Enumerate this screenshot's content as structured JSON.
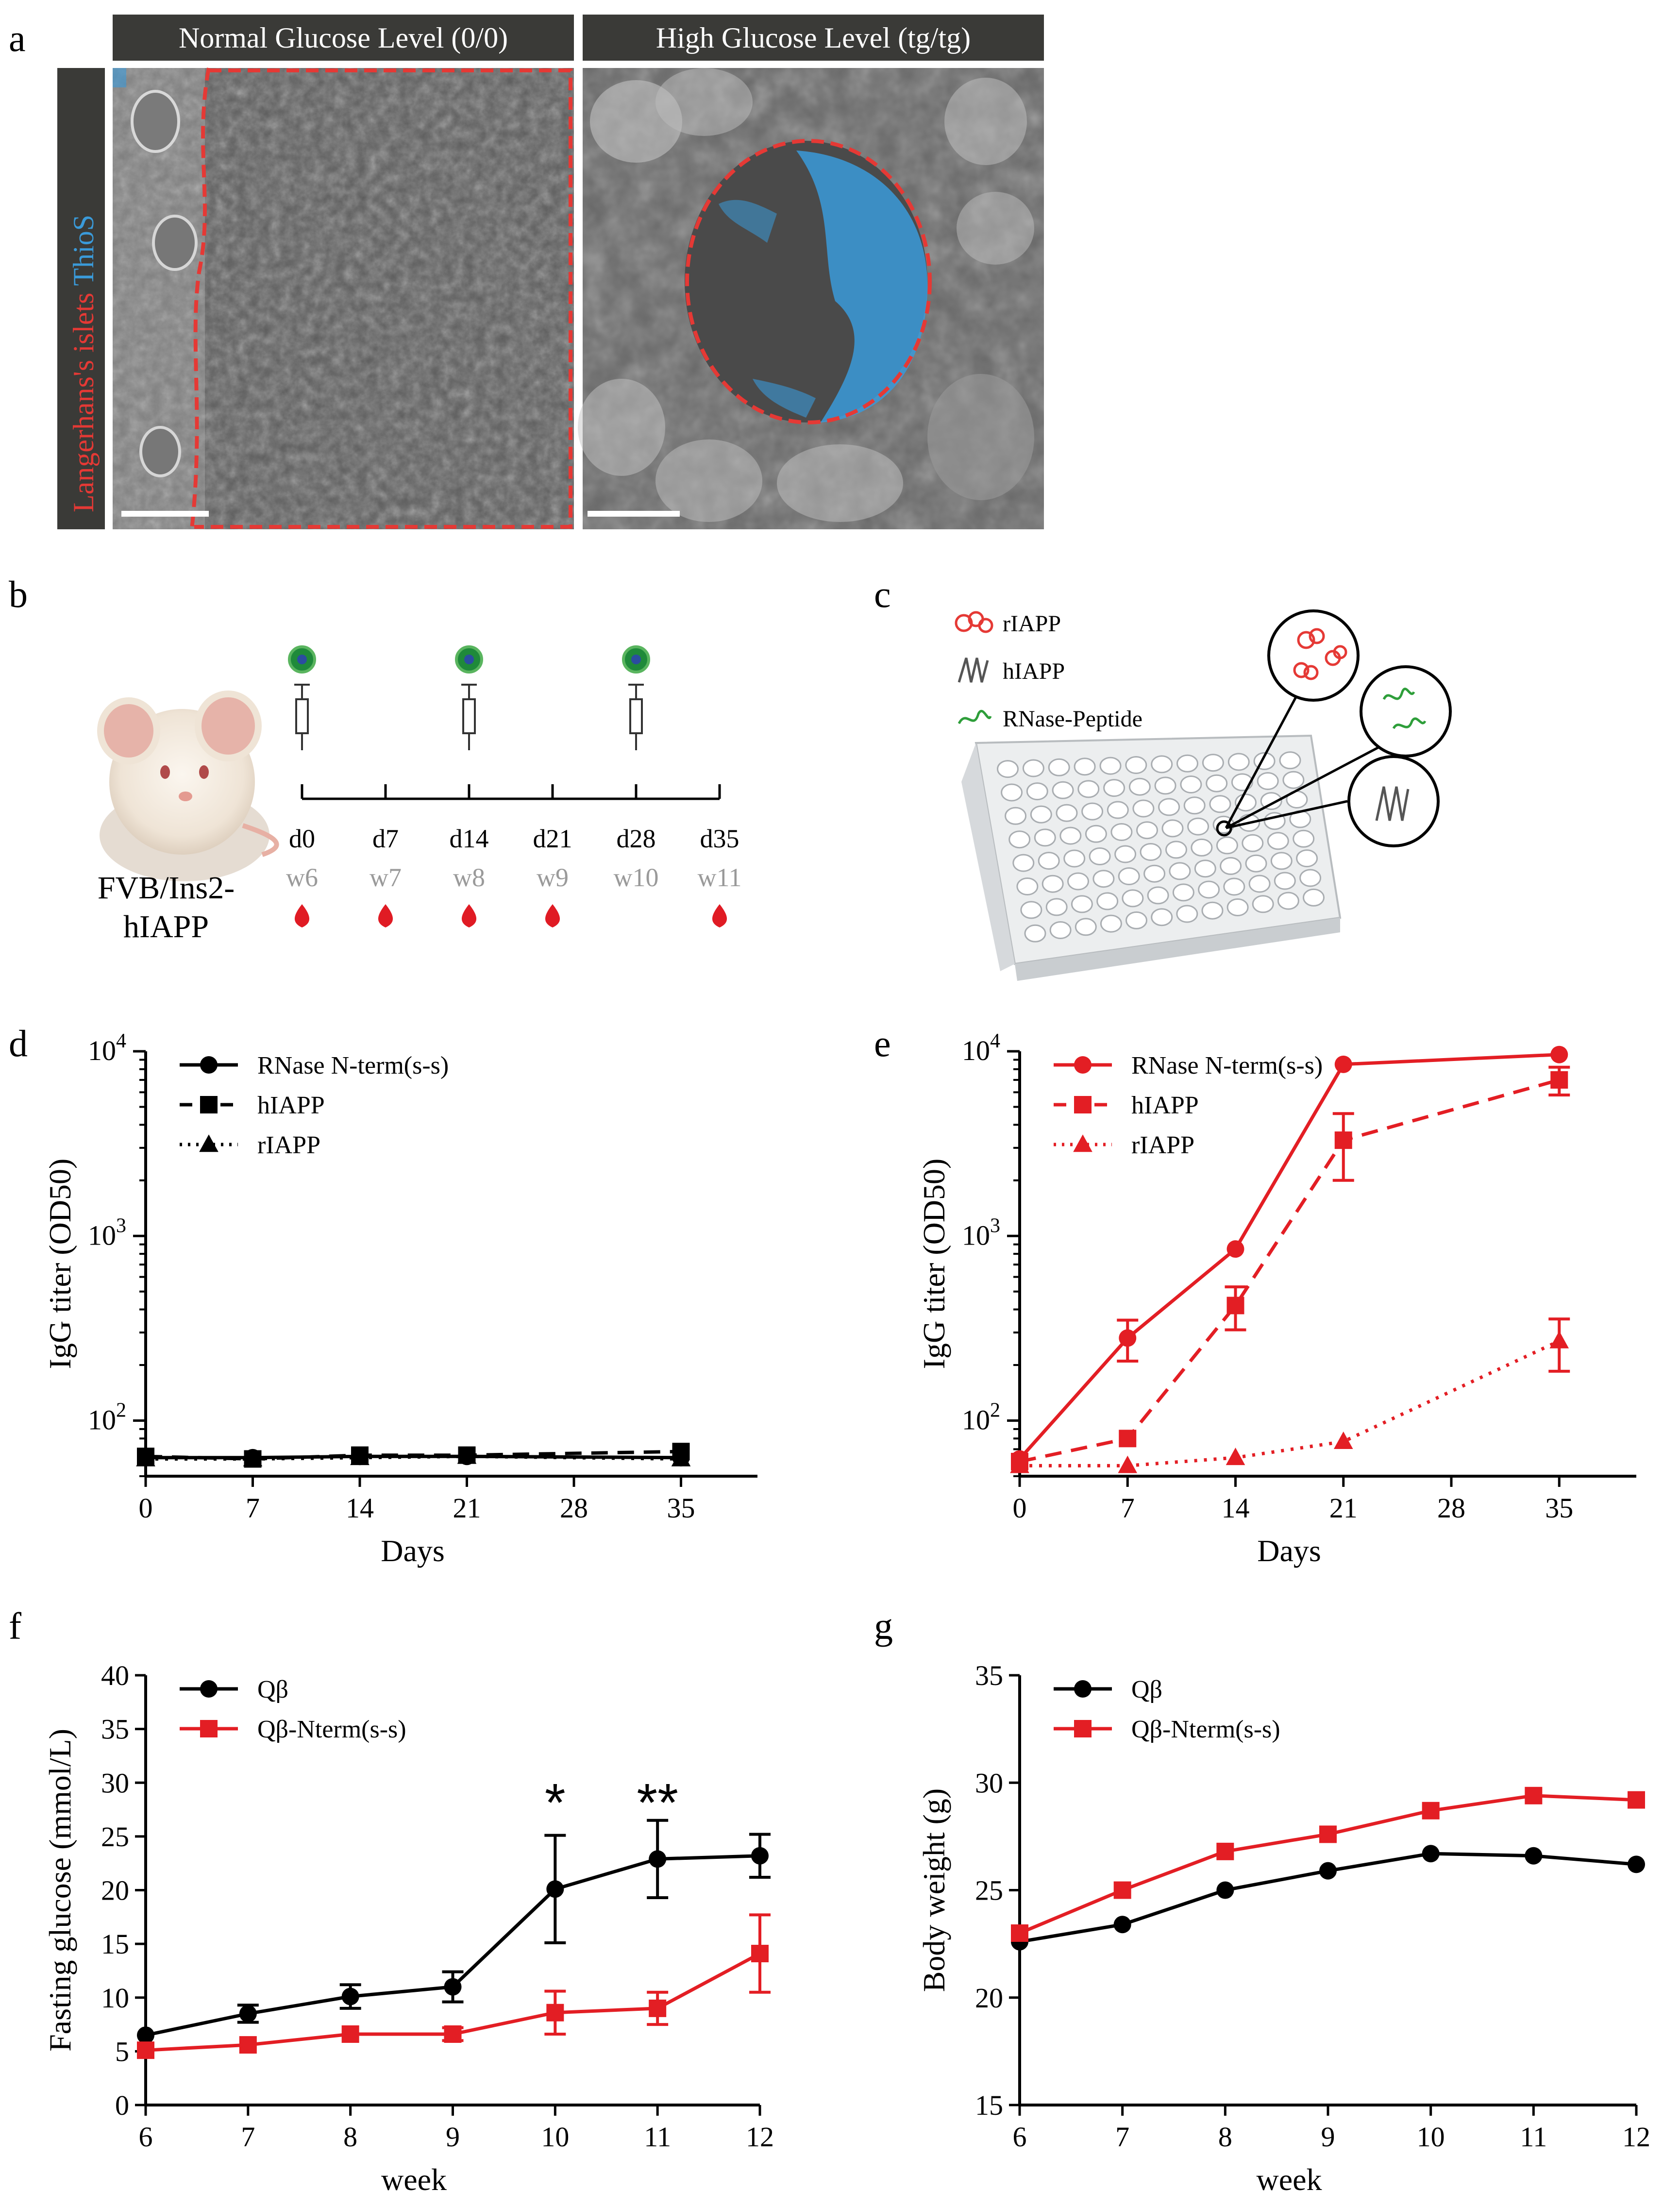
{
  "panel_letters": [
    "a",
    "b",
    "c",
    "d",
    "e",
    "f",
    "g"
  ],
  "panel_a": {
    "header_left": "Normal Glucose Level (0/0)",
    "header_right": "High Glucose Level (tg/tg)",
    "side_label_red": "Langerhans's islets",
    "side_label_blue": "ThioS",
    "colors": {
      "outline": "#e53935",
      "stain": "#3a9ad9",
      "header_bg": "#3a3a37"
    }
  },
  "panel_b": {
    "mouse_label_line1": "FVB/Ins2-",
    "mouse_label_line2": "hIAPP",
    "days": [
      "d0",
      "d7",
      "d14",
      "d21",
      "d28",
      "d35"
    ],
    "weeks": [
      "w6",
      "w7",
      "w8",
      "w9",
      "w10",
      "w11"
    ],
    "injection_days": [
      "d0",
      "d14",
      "d28"
    ],
    "blood_draw_days": [
      "d0",
      "d7",
      "d14",
      "d21",
      "d35"
    ],
    "icons": [
      "vaccine-particle-icon",
      "syringe-icon",
      "blood-drop-icon",
      "mouse-illustration"
    ]
  },
  "panel_c": {
    "legend": [
      "rIAPP",
      "hIAPP",
      "RNase-Peptide"
    ],
    "colors": {
      "rIAPP": "#e53935",
      "hIAPP": "#555555",
      "RNase-Peptide": "#2e9e3a"
    },
    "icons": [
      "elisa-plate-icon",
      "zoom-circle-icon"
    ]
  },
  "chart_data": [
    {
      "panel": "d",
      "type": "line",
      "ylabel": "IgG titer (OD50)",
      "xlabel": "Days",
      "yscale": "log",
      "ylim": [
        50,
        10000
      ],
      "xlim": [
        0,
        40
      ],
      "xticks": [
        0,
        7,
        14,
        21,
        28,
        35
      ],
      "yticks": [
        "10 2",
        "10 3",
        "10 4"
      ],
      "legend": "top-left",
      "series": [
        {
          "name": "RNase N-term(s-s)",
          "style": "solid",
          "marker": "circle",
          "color": "#000000",
          "x": [
            0,
            7,
            14,
            21,
            35
          ],
          "y": [
            63,
            63,
            64,
            64,
            63
          ]
        },
        {
          "name": "hIAPP",
          "style": "dashed",
          "marker": "square",
          "color": "#000000",
          "x": [
            0,
            7,
            14,
            21,
            35
          ],
          "y": [
            64,
            62,
            65,
            65,
            68
          ]
        },
        {
          "name": "rIAPP",
          "style": "dotted",
          "marker": "triangle",
          "color": "#000000",
          "x": [
            0,
            7,
            14,
            21,
            35
          ],
          "y": [
            62,
            62,
            63,
            64,
            62
          ]
        }
      ]
    },
    {
      "panel": "e",
      "type": "line",
      "ylabel": "IgG titer (OD50)",
      "xlabel": "Days",
      "yscale": "log",
      "ylim": [
        50,
        10000
      ],
      "xlim": [
        0,
        40
      ],
      "xticks": [
        0,
        7,
        14,
        21,
        28,
        35
      ],
      "yticks": [
        "10 2",
        "10 3",
        "10 4"
      ],
      "legend": "top-left",
      "series": [
        {
          "name": "RNase N-term(s-s)",
          "style": "solid",
          "marker": "circle",
          "color": "#e31e24",
          "x": [
            0,
            7,
            14,
            21,
            35
          ],
          "y": [
            62,
            280,
            850,
            8500,
            9600
          ],
          "err": [
            0,
            70,
            0,
            0,
            0
          ]
        },
        {
          "name": "hIAPP",
          "style": "dashed",
          "marker": "square",
          "color": "#e31e24",
          "x": [
            0,
            7,
            14,
            21,
            35
          ],
          "y": [
            60,
            80,
            420,
            3300,
            7000
          ],
          "err": [
            0,
            0,
            110,
            1300,
            1200
          ]
        },
        {
          "name": "rIAPP",
          "style": "dotted",
          "marker": "triangle",
          "color": "#e31e24",
          "x": [
            0,
            7,
            14,
            21,
            35
          ],
          "y": [
            57,
            57,
            63,
            77,
            270
          ],
          "err": [
            0,
            0,
            0,
            0,
            85
          ]
        }
      ]
    },
    {
      "panel": "f",
      "type": "line",
      "ylabel": "Fasting glucose (mmol/L)",
      "xlabel": "week",
      "ylim": [
        0,
        40
      ],
      "xlim": [
        6,
        12
      ],
      "xticks": [
        6,
        7,
        8,
        9,
        10,
        11,
        12
      ],
      "yticks": [
        0,
        5,
        10,
        15,
        20,
        25,
        30,
        35,
        40
      ],
      "legend": "top-left",
      "annotations": [
        {
          "text": "*",
          "x": 10
        },
        {
          "text": "**",
          "x": 11
        }
      ],
      "series": [
        {
          "name": "Qβ",
          "marker": "circle",
          "color": "#000000",
          "x": [
            6,
            7,
            8,
            9,
            10,
            11,
            12
          ],
          "y": [
            6.5,
            8.5,
            10.1,
            11,
            20.1,
            22.9,
            23.2
          ],
          "err": [
            0,
            0.8,
            1.1,
            1.4,
            5,
            3.6,
            2
          ]
        },
        {
          "name": "Qβ-Nterm(s-s)",
          "marker": "square",
          "color": "#e31e24",
          "x": [
            6,
            7,
            8,
            9,
            10,
            11,
            12
          ],
          "y": [
            5.1,
            5.6,
            6.6,
            6.6,
            8.6,
            9,
            14.1
          ],
          "err": [
            0,
            0,
            0,
            0.6,
            2,
            1.5,
            3.6
          ]
        }
      ]
    },
    {
      "panel": "g",
      "type": "line",
      "ylabel": "Body weight (g)",
      "xlabel": "week",
      "ylim": [
        15,
        35
      ],
      "xlim": [
        6,
        12
      ],
      "xticks": [
        6,
        7,
        8,
        9,
        10,
        11,
        12
      ],
      "yticks": [
        15,
        20,
        25,
        30,
        35
      ],
      "legend": "top-left",
      "series": [
        {
          "name": "Qβ",
          "marker": "circle",
          "color": "#000000",
          "x": [
            6,
            7,
            8,
            9,
            10,
            11,
            12
          ],
          "y": [
            22.6,
            23.4,
            25,
            25.9,
            26.7,
            26.6,
            26.2
          ]
        },
        {
          "name": "Qβ-Nterm(s-s)",
          "marker": "square",
          "color": "#e31e24",
          "x": [
            6,
            7,
            8,
            9,
            10,
            11,
            12
          ],
          "y": [
            23,
            25,
            26.8,
            27.6,
            28.7,
            29.4,
            29.2
          ]
        }
      ]
    }
  ]
}
